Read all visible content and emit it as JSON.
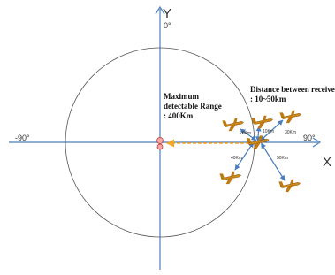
{
  "axes": {
    "y_label": "Y",
    "x_label": "X",
    "top": "0°",
    "right": "90°",
    "left": "-90°"
  },
  "range_note": {
    "lines": [
      "Maximum",
      "detectable Range",
      ": 400Km"
    ]
  },
  "receivers_note": {
    "lines": [
      "Distance between receivers",
      ": 10~50km"
    ]
  },
  "distances": [
    "20Km",
    "10Km",
    "30Km",
    "40Km",
    "50Km"
  ]
}
